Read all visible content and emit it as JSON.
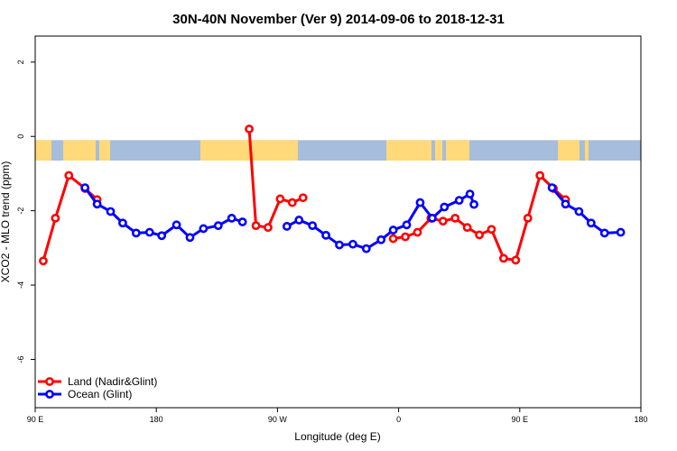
{
  "chart_data": {
    "type": "line",
    "title": "30N-40N November (Ver 9)   2014-09-06 to 2018-12-31",
    "xlabel": "Longitude (deg E)",
    "ylabel": "XCO2 - MLO trend (ppm)",
    "xlim": [
      90,
      540
    ],
    "ylim": [
      -7.3,
      2.7
    ],
    "x_ticks": [
      {
        "value": 90,
        "label": "90 E"
      },
      {
        "value": 180,
        "label": "180"
      },
      {
        "value": 270,
        "label": "90 W"
      },
      {
        "value": 360,
        "label": "0"
      },
      {
        "value": 450,
        "label": "90 E"
      },
      {
        "value": 540,
        "label": "180"
      }
    ],
    "y_ticks": [
      {
        "value": 2,
        "label": "2"
      },
      {
        "value": 0,
        "label": "0"
      },
      {
        "value": -2,
        "label": "-2"
      },
      {
        "value": -4,
        "label": "-4"
      },
      {
        "value": -6,
        "label": "-6"
      }
    ],
    "grid": false,
    "legend_position": "bottom-left",
    "series": [
      {
        "name": "Land (Nadir&Glint)",
        "color": "#ff0000",
        "segments": [
          [
            [
              96,
              -3.35
            ],
            [
              105,
              -2.2
            ],
            [
              115,
              -1.05
            ],
            [
              127,
              -1.4
            ],
            [
              136,
              -1.7
            ]
          ],
          [
            [
              249,
              0.2
            ],
            [
              254,
              -2.4
            ],
            [
              263,
              -2.45
            ],
            [
              272,
              -1.68
            ],
            [
              281,
              -1.78
            ],
            [
              289,
              -1.65
            ]
          ],
          [
            [
              356,
              -2.75
            ],
            [
              365,
              -2.7
            ],
            [
              374,
              -2.58
            ],
            [
              384,
              -2.2
            ],
            [
              393,
              -2.28
            ],
            [
              402,
              -2.2
            ],
            [
              411,
              -2.45
            ],
            [
              420,
              -2.65
            ],
            [
              429,
              -2.5
            ],
            [
              438,
              -3.28
            ],
            [
              447,
              -3.33
            ],
            [
              456,
              -2.2
            ],
            [
              465,
              -1.05
            ],
            [
              475,
              -1.4
            ],
            [
              484,
              -1.7
            ]
          ]
        ]
      },
      {
        "name": "Ocean (Glint)",
        "color": "#0000ff",
        "segments": [
          [
            [
              127,
              -1.38
            ],
            [
              136,
              -1.82
            ],
            [
              146,
              -2.02
            ],
            [
              155,
              -2.33
            ],
            [
              165,
              -2.6
            ],
            [
              175,
              -2.58
            ],
            [
              184,
              -2.67
            ],
            [
              195,
              -2.38
            ],
            [
              205,
              -2.72
            ],
            [
              215,
              -2.48
            ],
            [
              226,
              -2.4
            ],
            [
              236,
              -2.2
            ],
            [
              244,
              -2.3
            ]
          ],
          [
            [
              277,
              -2.42
            ],
            [
              286,
              -2.25
            ],
            [
              296,
              -2.4
            ],
            [
              306,
              -2.66
            ],
            [
              316,
              -2.92
            ],
            [
              326,
              -2.9
            ],
            [
              336,
              -3.02
            ],
            [
              347,
              -2.78
            ],
            [
              356,
              -2.52
            ],
            [
              366,
              -2.38
            ],
            [
              376,
              -1.78
            ],
            [
              385,
              -2.2
            ],
            [
              394,
              -1.9
            ],
            [
              405,
              -1.72
            ],
            [
              413,
              -1.55
            ],
            [
              416,
              -1.83
            ]
          ],
          [
            [
              474,
              -1.38
            ],
            [
              484,
              -1.82
            ],
            [
              494,
              -2.02
            ],
            [
              503,
              -2.33
            ],
            [
              513,
              -2.6
            ],
            [
              525,
              -2.58
            ]
          ]
        ]
      }
    ],
    "band": {
      "y_top": -0.1,
      "y_bottom": -0.65,
      "ocean_color": "#a6bddb",
      "land_color": "#ffd97a"
    }
  }
}
